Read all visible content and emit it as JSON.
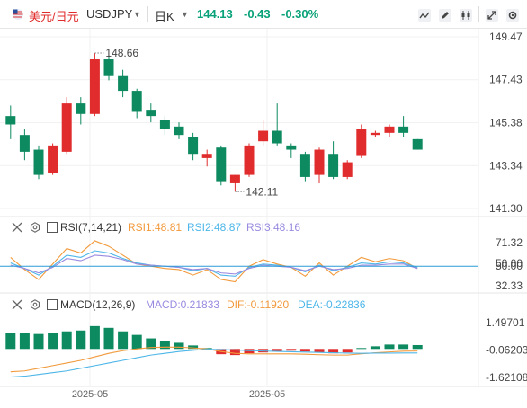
{
  "header": {
    "pair_cn": "美元/日元",
    "pair_code": "USDJPY",
    "timeframe": "日K",
    "price": "144.13",
    "change": "-0.43",
    "change_pct": "-0.30%"
  },
  "colors": {
    "up": "#e02c2c",
    "down": "#0e8a60",
    "rsi1": "#f29a3c",
    "rsi2": "#4db6e8",
    "rsi3": "#9a8ae0",
    "diff": "#f29a3c",
    "dea": "#4db6e8",
    "ref": "#2a9bd8"
  },
  "indicators": {
    "rsi": {
      "title": "RSI(7,14,21)",
      "rsi1": "RSI1:48.81",
      "rsi2": "RSI2:48.87",
      "rsi3": "RSI3:48.16"
    },
    "macd": {
      "title": "MACD(12,26,9)",
      "macd": "MACD:0.21833",
      "dif": "DIF:-0.11920",
      "dea": "DEA:-0.22836"
    }
  },
  "chart_data": [
    {
      "type": "candlestick",
      "price_axis": [
        "149.47",
        "147.43",
        "145.38",
        "143.34",
        "141.30"
      ],
      "ylim": [
        141.3,
        149.47
      ],
      "x_labels": [
        "2025-05",
        "2025-05"
      ],
      "annotations": {
        "high": "148.66",
        "low": "142.11"
      },
      "candles": [
        {
          "o": 145.7,
          "h": 146.2,
          "l": 144.6,
          "c": 145.3
        },
        {
          "o": 144.8,
          "h": 145.1,
          "l": 143.6,
          "c": 144.0
        },
        {
          "o": 144.1,
          "h": 144.3,
          "l": 142.7,
          "c": 142.9
        },
        {
          "o": 143.0,
          "h": 144.4,
          "l": 142.9,
          "c": 144.3
        },
        {
          "o": 144.0,
          "h": 146.6,
          "l": 143.9,
          "c": 146.3
        },
        {
          "o": 146.3,
          "h": 146.6,
          "l": 145.3,
          "c": 145.8
        },
        {
          "o": 145.8,
          "h": 148.7,
          "l": 145.7,
          "c": 148.4
        },
        {
          "o": 148.4,
          "h": 148.6,
          "l": 147.4,
          "c": 147.6
        },
        {
          "o": 147.6,
          "h": 147.9,
          "l": 146.6,
          "c": 146.9
        },
        {
          "o": 146.9,
          "h": 147.0,
          "l": 145.6,
          "c": 145.9
        },
        {
          "o": 146.0,
          "h": 146.3,
          "l": 145.4,
          "c": 145.7
        },
        {
          "o": 145.5,
          "h": 145.7,
          "l": 144.8,
          "c": 145.1
        },
        {
          "o": 145.2,
          "h": 145.4,
          "l": 144.6,
          "c": 144.8
        },
        {
          "o": 144.7,
          "h": 144.9,
          "l": 143.6,
          "c": 143.9
        },
        {
          "o": 143.7,
          "h": 144.1,
          "l": 143.3,
          "c": 143.9
        },
        {
          "o": 144.2,
          "h": 144.3,
          "l": 142.4,
          "c": 142.6
        },
        {
          "o": 142.5,
          "h": 142.9,
          "l": 142.1,
          "c": 142.9
        },
        {
          "o": 142.9,
          "h": 144.4,
          "l": 142.8,
          "c": 144.3
        },
        {
          "o": 144.5,
          "h": 145.5,
          "l": 144.3,
          "c": 145.0
        },
        {
          "o": 145.0,
          "h": 146.3,
          "l": 144.3,
          "c": 144.4
        },
        {
          "o": 144.3,
          "h": 144.4,
          "l": 143.7,
          "c": 144.1
        },
        {
          "o": 143.9,
          "h": 144.0,
          "l": 142.6,
          "c": 142.8
        },
        {
          "o": 142.9,
          "h": 144.2,
          "l": 142.5,
          "c": 144.1
        },
        {
          "o": 143.9,
          "h": 144.5,
          "l": 142.7,
          "c": 142.8
        },
        {
          "o": 142.8,
          "h": 143.6,
          "l": 142.7,
          "c": 143.5
        },
        {
          "o": 143.8,
          "h": 145.3,
          "l": 143.7,
          "c": 145.1
        },
        {
          "o": 144.8,
          "h": 145.0,
          "l": 144.7,
          "c": 144.9
        },
        {
          "o": 144.9,
          "h": 145.3,
          "l": 144.7,
          "c": 145.2
        },
        {
          "o": 145.2,
          "h": 145.7,
          "l": 144.7,
          "c": 144.9
        },
        {
          "o": 144.6,
          "h": 144.6,
          "l": 144.1,
          "c": 144.1
        }
      ]
    },
    {
      "type": "line",
      "name": "RSI",
      "y_axis": [
        "71.32",
        "50.00",
        "32.33"
      ],
      "ylim": [
        32.33,
        71.32
      ],
      "series": [
        {
          "name": "RSI1",
          "values": [
            58,
            47,
            38,
            52,
            66,
            62,
            73,
            68,
            60,
            52,
            50,
            48,
            47,
            42,
            47,
            38,
            36,
            50,
            56,
            52,
            49,
            41,
            53,
            42,
            50,
            58,
            54,
            57,
            55,
            48
          ]
        },
        {
          "name": "RSI2",
          "values": [
            53,
            48,
            42,
            50,
            60,
            58,
            64,
            62,
            57,
            53,
            51,
            50,
            49,
            46,
            48,
            42,
            41,
            49,
            52,
            51,
            49,
            45,
            51,
            46,
            49,
            53,
            52,
            54,
            53,
            49
          ]
        },
        {
          "name": "RSI3",
          "values": [
            51,
            48,
            44,
            49,
            57,
            55,
            60,
            59,
            56,
            52,
            51,
            50,
            49,
            47,
            48,
            44,
            43,
            48,
            51,
            50,
            49,
            46,
            50,
            47,
            48,
            51,
            51,
            52,
            52,
            48
          ]
        }
      ]
    },
    {
      "type": "bar",
      "name": "MACD",
      "y_axis": [
        "1.49701",
        "-0.06203",
        "-1.62108"
      ],
      "ylim": [
        -1.62108,
        1.49701
      ],
      "series": [
        {
          "name": "MACD",
          "values": [
            0.9,
            0.9,
            0.85,
            0.9,
            1.0,
            1.05,
            1.3,
            1.2,
            1.0,
            0.8,
            0.6,
            0.45,
            0.35,
            0.2,
            0.05,
            -0.3,
            -0.35,
            -0.25,
            -0.2,
            -0.15,
            -0.1,
            -0.15,
            -0.2,
            -0.25,
            -0.2,
            0.05,
            0.15,
            0.25,
            0.25,
            0.22
          ]
        },
        {
          "name": "DIF",
          "values": [
            -1.3,
            -1.25,
            -1.1,
            -0.95,
            -0.8,
            -0.65,
            -0.45,
            -0.25,
            -0.1,
            0.0,
            0.08,
            0.1,
            0.1,
            0.06,
            0.0,
            -0.15,
            -0.25,
            -0.28,
            -0.28,
            -0.28,
            -0.28,
            -0.3,
            -0.33,
            -0.35,
            -0.35,
            -0.28,
            -0.22,
            -0.17,
            -0.13,
            -0.12
          ]
        },
        {
          "name": "DEA",
          "values": [
            -1.6,
            -1.55,
            -1.45,
            -1.35,
            -1.25,
            -1.1,
            -0.95,
            -0.8,
            -0.65,
            -0.5,
            -0.35,
            -0.25,
            -0.15,
            -0.08,
            -0.02,
            -0.04,
            -0.06,
            -0.1,
            -0.12,
            -0.14,
            -0.16,
            -0.18,
            -0.2,
            -0.22,
            -0.24,
            -0.25,
            -0.24,
            -0.24,
            -0.23,
            -0.23
          ]
        }
      ]
    }
  ]
}
